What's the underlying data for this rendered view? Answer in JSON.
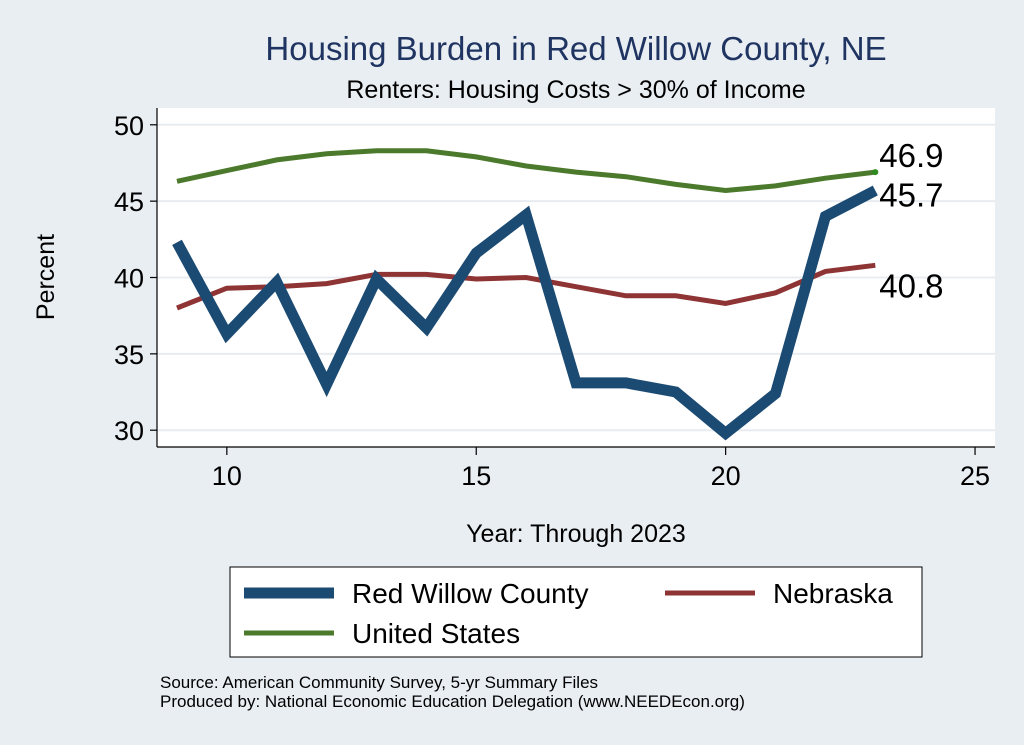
{
  "chart_data": {
    "type": "line",
    "title": "Housing Burden in Red Willow County, NE",
    "subtitle": "Renters: Housing Costs > 30% of Income",
    "xlabel": "Year: Through 2023",
    "ylabel": "Percent",
    "xlim": [
      8.6,
      25.4
    ],
    "ylim": [
      28.9,
      51.1
    ],
    "x_ticks": [
      10,
      15,
      20,
      25
    ],
    "y_ticks": [
      30,
      35,
      40,
      45,
      50
    ],
    "grid": true,
    "legend_position": "bottom",
    "series": [
      {
        "name": "Red Willow County",
        "color": "#1b4a72",
        "x": [
          9,
          10,
          11,
          12,
          13,
          14,
          15,
          16,
          17,
          18,
          19,
          20,
          21,
          22,
          23
        ],
        "values": [
          42.3,
          36.3,
          39.7,
          33.0,
          39.9,
          36.7,
          41.6,
          44.1,
          33.1,
          33.1,
          32.5,
          29.8,
          32.4,
          44.0,
          45.7
        ],
        "end_label": "45.7"
      },
      {
        "name": "Nebraska",
        "color": "#8e3434",
        "x": [
          9,
          10,
          11,
          12,
          13,
          14,
          15,
          16,
          17,
          18,
          19,
          20,
          21,
          22,
          23
        ],
        "values": [
          38.0,
          39.3,
          39.4,
          39.6,
          40.2,
          40.2,
          39.9,
          40.0,
          39.4,
          38.8,
          38.8,
          38.3,
          39.0,
          40.4,
          40.8
        ],
        "end_label": "40.8"
      },
      {
        "name": "United States",
        "color": "#4c7a2c",
        "x": [
          9,
          10,
          11,
          12,
          13,
          14,
          15,
          16,
          17,
          18,
          19,
          20,
          21,
          22,
          23
        ],
        "values": [
          46.3,
          47.0,
          47.7,
          48.1,
          48.3,
          48.3,
          47.9,
          47.3,
          46.9,
          46.6,
          46.1,
          45.7,
          46.0,
          46.5,
          46.9
        ],
        "end_label": "46.9"
      }
    ]
  },
  "source_note": "Source: American Community Survey, 5-yr Summary Files",
  "produced_note": "Produced by: National Economic Education Delegation (www.NEEDEcon.org)"
}
